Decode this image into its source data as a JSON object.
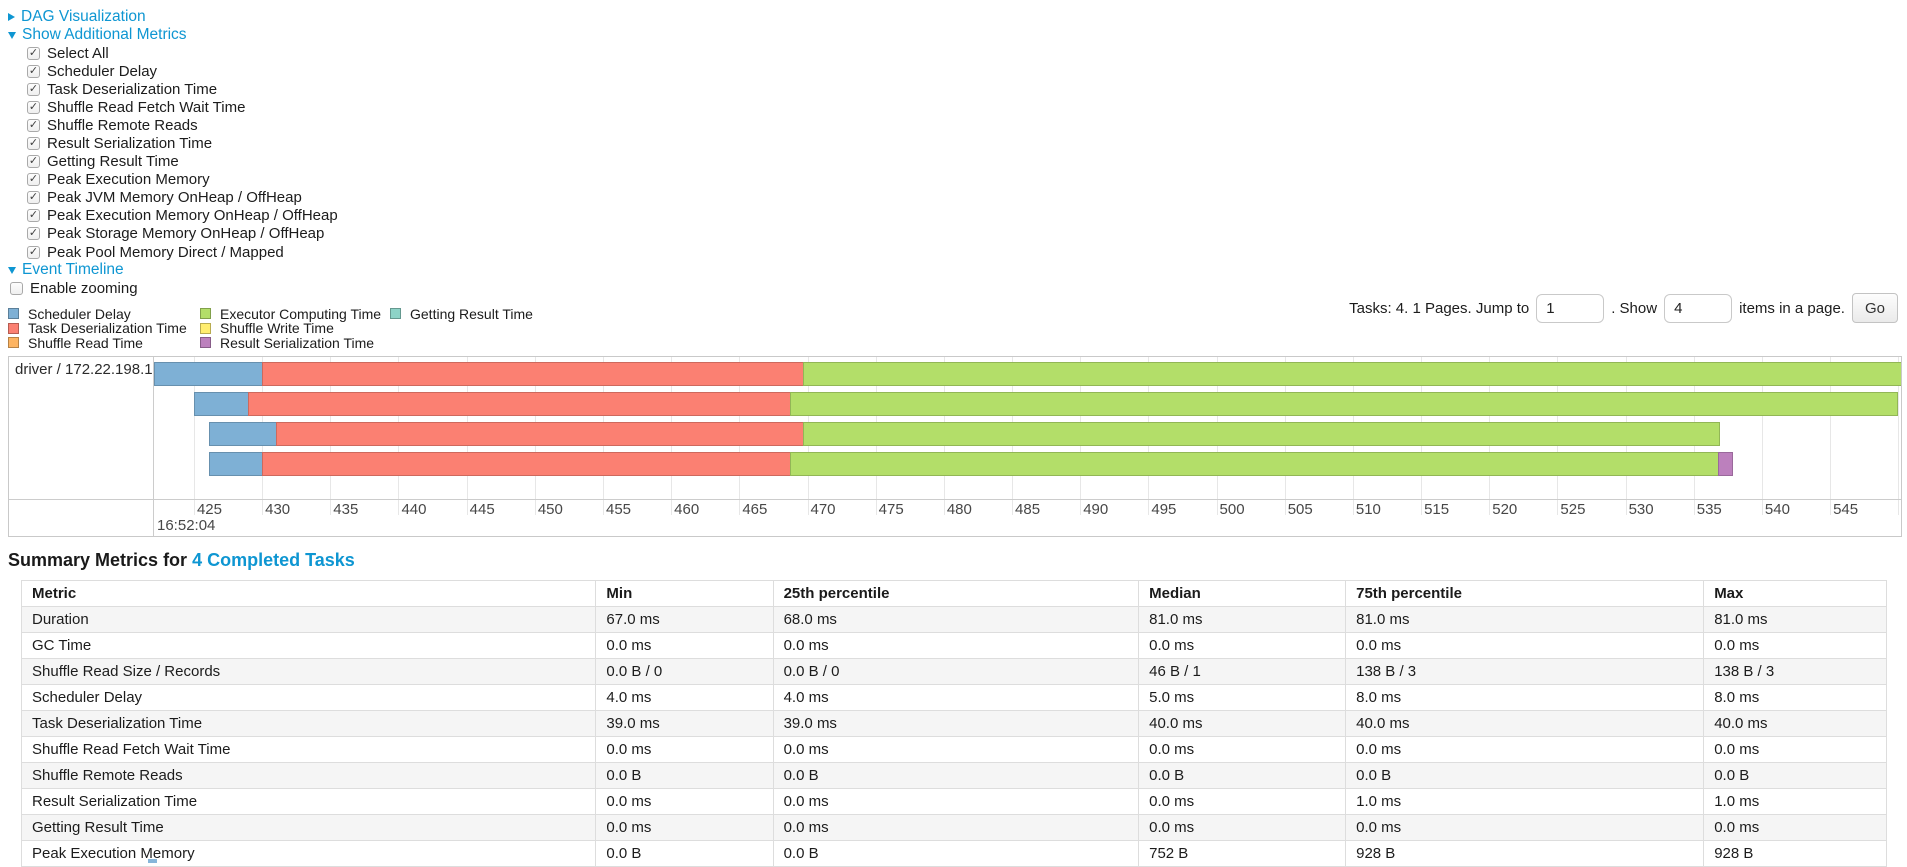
{
  "accent_color": "#0E96D2",
  "links": {
    "dag": "DAG Visualization",
    "metrics": "Show Additional Metrics",
    "timeline": "Event Timeline"
  },
  "metrics_checkboxes": [
    {
      "label": "Select All",
      "checked": true
    },
    {
      "label": "Scheduler Delay",
      "checked": true
    },
    {
      "label": "Task Deserialization Time",
      "checked": true
    },
    {
      "label": "Shuffle Read Fetch Wait Time",
      "checked": true
    },
    {
      "label": "Shuffle Remote Reads",
      "checked": true
    },
    {
      "label": "Result Serialization Time",
      "checked": true
    },
    {
      "label": "Getting Result Time",
      "checked": true
    },
    {
      "label": "Peak Execution Memory",
      "checked": true
    },
    {
      "label": "Peak JVM Memory OnHeap / OffHeap",
      "checked": true
    },
    {
      "label": "Peak Execution Memory OnHeap / OffHeap",
      "checked": true
    },
    {
      "label": "Peak Storage Memory OnHeap / OffHeap",
      "checked": true
    },
    {
      "label": "Peak Pool Memory Direct / Mapped",
      "checked": true
    }
  ],
  "enable_zooming": {
    "label": "Enable zooming",
    "checked": false
  },
  "legend": {
    "columns": [
      [
        {
          "label": "Scheduler Delay",
          "color": "scheduler_delay"
        },
        {
          "label": "Task Deserialization Time",
          "color": "deserialization"
        },
        {
          "label": "Shuffle Read Time",
          "color": "shuffle_read"
        }
      ],
      [
        {
          "label": "Executor Computing Time",
          "color": "computing"
        },
        {
          "label": "Shuffle Write Time",
          "color": "shuffle_write"
        },
        {
          "label": "Result Serialization Time",
          "color": "serialization"
        }
      ],
      [
        {
          "label": "Getting Result Time",
          "color": "getting_result"
        }
      ]
    ]
  },
  "pagination": {
    "tasks_text": "Tasks: 4. 1 Pages. Jump to",
    "jump_value": "1",
    "show_text": ". Show",
    "show_value": "4",
    "items_text": "items in a page.",
    "go_label": "Go"
  },
  "chart_data": {
    "type": "timeline",
    "row_label": "driver / 172.22.198.104",
    "axis": {
      "min": 422.07,
      "max": 550.2,
      "tick_start": 425,
      "tick_end": 550,
      "tick_step": 5,
      "major_label": "16:52:04"
    },
    "colors": {
      "scheduler_delay": "#7EB0D5",
      "deserialization": "#FB8072",
      "shuffle_read": "#FDB462",
      "computing": "#B3DE69",
      "shuffle_write": "#FFED6F",
      "serialization": "#BC80BD",
      "getting_result": "#8DD3C7"
    },
    "tasks": [
      {
        "start": 422.1,
        "segments": [
          [
            "scheduler_delay",
            430.0
          ],
          [
            "deserialization",
            469.7
          ],
          [
            "computing",
            551.5
          ]
        ]
      },
      {
        "start": 425.0,
        "segments": [
          [
            "scheduler_delay",
            429.0
          ],
          [
            "deserialization",
            468.7
          ],
          [
            "computing",
            550.0
          ]
        ]
      },
      {
        "start": 426.1,
        "segments": [
          [
            "scheduler_delay",
            431.0
          ],
          [
            "deserialization",
            469.7
          ],
          [
            "computing",
            536.9
          ]
        ]
      },
      {
        "start": 426.1,
        "segments": [
          [
            "scheduler_delay",
            430.0
          ],
          [
            "deserialization",
            468.7
          ],
          [
            "computing",
            536.8
          ],
          [
            "serialization",
            537.9
          ]
        ]
      }
    ]
  },
  "summary": {
    "title_prefix": "Summary Metrics for ",
    "title_link": "4 Completed Tasks",
    "table": {
      "headers": [
        "Metric",
        "Min",
        "25th percentile",
        "Median",
        "75th percentile",
        "Max"
      ],
      "col_widths": [
        "30.8%",
        "9.5%",
        "19.6%",
        "11.1%",
        "19.2%",
        "9.8%"
      ],
      "rows": [
        [
          "Duration",
          "67.0 ms",
          "68.0 ms",
          "81.0 ms",
          "81.0 ms",
          "81.0 ms"
        ],
        [
          "GC Time",
          "0.0 ms",
          "0.0 ms",
          "0.0 ms",
          "0.0 ms",
          "0.0 ms"
        ],
        [
          "Shuffle Read Size / Records",
          "0.0 B / 0",
          "0.0 B / 0",
          "46 B / 1",
          "138 B / 3",
          "138 B / 3"
        ],
        [
          "Scheduler Delay",
          "4.0 ms",
          "4.0 ms",
          "5.0 ms",
          "8.0 ms",
          "8.0 ms"
        ],
        [
          "Task Deserialization Time",
          "39.0 ms",
          "39.0 ms",
          "40.0 ms",
          "40.0 ms",
          "40.0 ms"
        ],
        [
          "Shuffle Read Fetch Wait Time",
          "0.0 ms",
          "0.0 ms",
          "0.0 ms",
          "0.0 ms",
          "0.0 ms"
        ],
        [
          "Shuffle Remote Reads",
          "0.0 B",
          "0.0 B",
          "0.0 B",
          "0.0 B",
          "0.0 B"
        ],
        [
          "Result Serialization Time",
          "0.0 ms",
          "0.0 ms",
          "0.0 ms",
          "1.0 ms",
          "1.0 ms"
        ],
        [
          "Getting Result Time",
          "0.0 ms",
          "0.0 ms",
          "0.0 ms",
          "0.0 ms",
          "0.0 ms"
        ],
        [
          "Peak Execution Memory",
          "0.0 B",
          "0.0 B",
          "752 B",
          "928 B",
          "928 B"
        ]
      ]
    }
  }
}
